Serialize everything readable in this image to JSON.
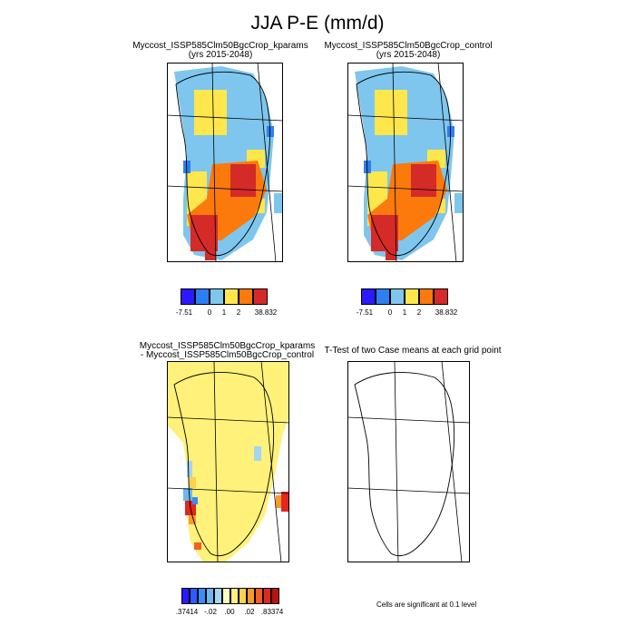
{
  "title": "JJA P-E (mm/d)",
  "panels": {
    "top_left": {
      "title": "Myccost_ISSP585Clm50BgcCrop_kparams",
      "subtitle": "(yrs 2015-2048)"
    },
    "top_right": {
      "title": "Myccost_ISSP585Clm50BgcCrop_control",
      "subtitle": "(yrs 2015-2048)"
    },
    "bottom_left": {
      "title": "Myccost_ISSP585Clm50BgcCrop_kparams",
      "subtitle": "- Myccost_ISSP585Clm50BgcCrop_control"
    },
    "bottom_right": {
      "title": "T-Test of two Case means at each grid point"
    }
  },
  "colorbar_fields": {
    "colors": [
      "#2a1aff",
      "#2b7ff2",
      "#7ec6ee",
      "#fde74c",
      "#fb7a0b",
      "#d42a28"
    ],
    "tick_labels": [
      "-7.51",
      "0",
      "1",
      "2",
      "38.832"
    ]
  },
  "colorbar_difference": {
    "colors": [
      "#2a1aff",
      "#2b5cff",
      "#3a8df7",
      "#6fb7f0",
      "#a4d5f2",
      "#fffcc0",
      "#fff17a",
      "#fcd24b",
      "#fb9a2a",
      "#f35f1d",
      "#e1281e",
      "#b71314"
    ],
    "tick_labels": [
      ".37414",
      "-.02",
      ".00",
      ".02",
      ".83374"
    ]
  },
  "significance_note": "Cells are significant at 0.1 level",
  "colors": {
    "land_outline": "#000000",
    "diff_background": "#fff17a"
  }
}
